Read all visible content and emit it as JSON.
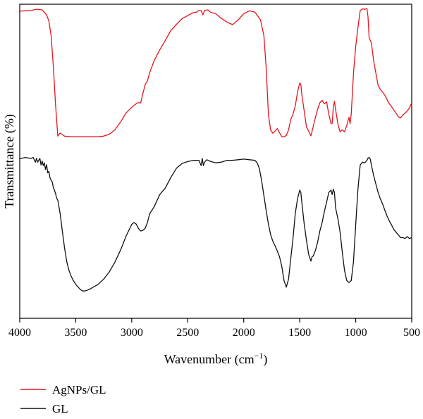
{
  "chart_data": {
    "type": "line",
    "xlabel": "Wavenumber (cm",
    "xlabel_sup": "−1",
    "xlabel_close": ")",
    "ylabel": "Transmittance (%)",
    "xlim": [
      4000,
      500
    ],
    "x_reversed": true,
    "ylim": [
      0,
      100
    ],
    "y_ticks_shown": false,
    "grid": false,
    "legend_position": "bottom-left-outside",
    "x_ticks": [
      {
        "value": 4000,
        "label": "4000"
      },
      {
        "value": 3500,
        "label": "3500"
      },
      {
        "value": 3000,
        "label": "3000"
      },
      {
        "value": 2500,
        "label": "2500"
      },
      {
        "value": 2000,
        "label": "2000"
      },
      {
        "value": 1500,
        "label": "1500"
      },
      {
        "value": 1000,
        "label": "1000"
      },
      {
        "value": 500,
        "label": "500"
      }
    ],
    "series": [
      {
        "name": "AgNPs/GL",
        "color": "#e8141c",
        "points": [
          [
            4000,
            97.8
          ],
          [
            3900,
            98.0
          ],
          [
            3850,
            98.4
          ],
          [
            3800,
            98.2
          ],
          [
            3780,
            97.4
          ],
          [
            3760,
            96.6
          ],
          [
            3740,
            94.7
          ],
          [
            3720,
            90.0
          ],
          [
            3700,
            80.0
          ],
          [
            3680,
            68.0
          ],
          [
            3660,
            58.0
          ],
          [
            3640,
            59.0
          ],
          [
            3620,
            58.5
          ],
          [
            3600,
            58.0
          ],
          [
            3550,
            57.8
          ],
          [
            3500,
            57.8
          ],
          [
            3450,
            57.8
          ],
          [
            3400,
            57.8
          ],
          [
            3350,
            57.8
          ],
          [
            3300,
            57.8
          ],
          [
            3250,
            58.0
          ],
          [
            3200,
            58.6
          ],
          [
            3150,
            60.0
          ],
          [
            3100,
            62.5
          ],
          [
            3050,
            65.4
          ],
          [
            3000,
            67.2
          ],
          [
            2950,
            68.6
          ],
          [
            2920,
            68.6
          ],
          [
            2900,
            71.6
          ],
          [
            2880,
            74.4
          ],
          [
            2860,
            75.6
          ],
          [
            2840,
            78.2
          ],
          [
            2800,
            82.0
          ],
          [
            2750,
            85.5
          ],
          [
            2700,
            88.5
          ],
          [
            2650,
            91.7
          ],
          [
            2600,
            93.6
          ],
          [
            2550,
            95.4
          ],
          [
            2500,
            96.4
          ],
          [
            2450,
            97.3
          ],
          [
            2420,
            97.5
          ],
          [
            2400,
            98.0
          ],
          [
            2380,
            98.0
          ],
          [
            2365,
            96.6
          ],
          [
            2350,
            98.0
          ],
          [
            2320,
            98.2
          ],
          [
            2300,
            97.5
          ],
          [
            2250,
            97.0
          ],
          [
            2200,
            95.5
          ],
          [
            2150,
            94.3
          ],
          [
            2100,
            93.5
          ],
          [
            2050,
            95.0
          ],
          [
            2000,
            97.0
          ],
          [
            1950,
            97.9
          ],
          [
            1900,
            97.5
          ],
          [
            1850,
            95.0
          ],
          [
            1820,
            90.0
          ],
          [
            1800,
            80.0
          ],
          [
            1780,
            65.0
          ],
          [
            1760,
            60.0
          ],
          [
            1740,
            58.9
          ],
          [
            1720,
            59.6
          ],
          [
            1700,
            60.4
          ],
          [
            1680,
            59.1
          ],
          [
            1660,
            57.8
          ],
          [
            1640,
            57.8
          ],
          [
            1620,
            58.2
          ],
          [
            1600,
            60.0
          ],
          [
            1580,
            63.3
          ],
          [
            1560,
            65.0
          ],
          [
            1540,
            67.5
          ],
          [
            1520,
            72.0
          ],
          [
            1500,
            74.9
          ],
          [
            1490,
            74.5
          ],
          [
            1480,
            70.9
          ],
          [
            1460,
            66.0
          ],
          [
            1440,
            60.9
          ],
          [
            1420,
            59.6
          ],
          [
            1400,
            58.1
          ],
          [
            1380,
            60.9
          ],
          [
            1360,
            64.0
          ],
          [
            1340,
            66.6
          ],
          [
            1320,
            68.6
          ],
          [
            1300,
            69.4
          ],
          [
            1280,
            68.3
          ],
          [
            1260,
            68.9
          ],
          [
            1240,
            64.9
          ],
          [
            1220,
            62.0
          ],
          [
            1210,
            62.1
          ],
          [
            1200,
            67.2
          ],
          [
            1190,
            69.1
          ],
          [
            1180,
            66.5
          ],
          [
            1160,
            62.0
          ],
          [
            1140,
            59.4
          ],
          [
            1120,
            60.0
          ],
          [
            1100,
            59.4
          ],
          [
            1080,
            61.4
          ],
          [
            1060,
            64.0
          ],
          [
            1050,
            62.0
          ],
          [
            1040,
            65.0
          ],
          [
            1020,
            78.0
          ],
          [
            1000,
            86.7
          ],
          [
            980,
            92.5
          ],
          [
            960,
            98.0
          ],
          [
            940,
            98.5
          ],
          [
            920,
            98.4
          ],
          [
            900,
            98.6
          ],
          [
            890,
            96.0
          ],
          [
            880,
            89.3
          ],
          [
            860,
            87.7
          ],
          [
            840,
            82.0
          ],
          [
            820,
            78.0
          ],
          [
            800,
            74.2
          ],
          [
            780,
            72.8
          ],
          [
            760,
            72.0
          ],
          [
            740,
            71.0
          ],
          [
            720,
            69.6
          ],
          [
            700,
            68.3
          ],
          [
            680,
            67.4
          ],
          [
            660,
            66.3
          ],
          [
            640,
            65.3
          ],
          [
            620,
            64.2
          ],
          [
            600,
            63.8
          ],
          [
            580,
            64.7
          ],
          [
            560,
            65.3
          ],
          [
            540,
            66.0
          ],
          [
            520,
            67.0
          ],
          [
            500,
            68.6
          ]
        ]
      },
      {
        "name": "GL",
        "color": "#111111",
        "points": [
          [
            4000,
            50.8
          ],
          [
            3950,
            51.2
          ],
          [
            3900,
            50.9
          ],
          [
            3880,
            51.2
          ],
          [
            3860,
            49.7
          ],
          [
            3850,
            50.9
          ],
          [
            3840,
            49.7
          ],
          [
            3820,
            50.9
          ],
          [
            3810,
            48.8
          ],
          [
            3800,
            50.1
          ],
          [
            3790,
            48.6
          ],
          [
            3780,
            49.5
          ],
          [
            3770,
            47.4
          ],
          [
            3760,
            48.9
          ],
          [
            3750,
            46.3
          ],
          [
            3740,
            46.8
          ],
          [
            3730,
            44.7
          ],
          [
            3720,
            44.0
          ],
          [
            3710,
            43.4
          ],
          [
            3700,
            41.5
          ],
          [
            3690,
            40.8
          ],
          [
            3680,
            39.7
          ],
          [
            3670,
            38.2
          ],
          [
            3660,
            37.6
          ],
          [
            3640,
            33.5
          ],
          [
            3620,
            27.8
          ],
          [
            3600,
            22.5
          ],
          [
            3580,
            18.0
          ],
          [
            3560,
            15.2
          ],
          [
            3540,
            13.3
          ],
          [
            3520,
            11.9
          ],
          [
            3500,
            10.8
          ],
          [
            3480,
            10.0
          ],
          [
            3460,
            9.2
          ],
          [
            3440,
            8.7
          ],
          [
            3420,
            8.7
          ],
          [
            3400,
            8.9
          ],
          [
            3380,
            9.2
          ],
          [
            3350,
            9.8
          ],
          [
            3300,
            10.8
          ],
          [
            3250,
            12.5
          ],
          [
            3200,
            14.8
          ],
          [
            3150,
            17.9
          ],
          [
            3100,
            21.7
          ],
          [
            3050,
            26.2
          ],
          [
            3000,
            29.9
          ],
          [
            2980,
            30.5
          ],
          [
            2960,
            30.0
          ],
          [
            2940,
            28.6
          ],
          [
            2920,
            27.8
          ],
          [
            2900,
            28.0
          ],
          [
            2880,
            28.6
          ],
          [
            2860,
            30.5
          ],
          [
            2840,
            33.3
          ],
          [
            2800,
            35.5
          ],
          [
            2750,
            39.4
          ],
          [
            2700,
            41.5
          ],
          [
            2650,
            44.9
          ],
          [
            2600,
            47.8
          ],
          [
            2550,
            49.3
          ],
          [
            2500,
            49.9
          ],
          [
            2450,
            50.3
          ],
          [
            2400,
            50.3
          ],
          [
            2380,
            48.6
          ],
          [
            2370,
            50.9
          ],
          [
            2360,
            48.6
          ],
          [
            2350,
            49.7
          ],
          [
            2330,
            50.5
          ],
          [
            2300,
            50.0
          ],
          [
            2250,
            49.5
          ],
          [
            2200,
            49.7
          ],
          [
            2150,
            50.3
          ],
          [
            2100,
            50.3
          ],
          [
            2050,
            50.5
          ],
          [
            2000,
            50.7
          ],
          [
            1950,
            50.5
          ],
          [
            1900,
            50.3
          ],
          [
            1880,
            49.5
          ],
          [
            1860,
            47.6
          ],
          [
            1840,
            43.8
          ],
          [
            1820,
            39.1
          ],
          [
            1800,
            34.4
          ],
          [
            1780,
            30.0
          ],
          [
            1760,
            26.7
          ],
          [
            1740,
            24.5
          ],
          [
            1720,
            23.1
          ],
          [
            1700,
            21.4
          ],
          [
            1680,
            19.6
          ],
          [
            1660,
            16.5
          ],
          [
            1640,
            12.0
          ],
          [
            1620,
            9.9
          ],
          [
            1600,
            12.5
          ],
          [
            1580,
            19.0
          ],
          [
            1560,
            25.4
          ],
          [
            1540,
            33.3
          ],
          [
            1520,
            38.0
          ],
          [
            1500,
            40.8
          ],
          [
            1490,
            40.1
          ],
          [
            1480,
            36.6
          ],
          [
            1460,
            30.0
          ],
          [
            1440,
            24.8
          ],
          [
            1420,
            20.3
          ],
          [
            1400,
            18.2
          ],
          [
            1390,
            19.6
          ],
          [
            1380,
            19.8
          ],
          [
            1360,
            21.6
          ],
          [
            1340,
            24.3
          ],
          [
            1320,
            27.8
          ],
          [
            1300,
            30.5
          ],
          [
            1280,
            34.0
          ],
          [
            1260,
            37.0
          ],
          [
            1240,
            40.1
          ],
          [
            1220,
            40.8
          ],
          [
            1210,
            39.4
          ],
          [
            1200,
            41.1
          ],
          [
            1190,
            40.1
          ],
          [
            1180,
            35.2
          ],
          [
            1160,
            31.8
          ],
          [
            1140,
            27.6
          ],
          [
            1120,
            21.1
          ],
          [
            1100,
            15.2
          ],
          [
            1080,
            12.0
          ],
          [
            1060,
            11.4
          ],
          [
            1040,
            12.0
          ],
          [
            1020,
            18.0
          ],
          [
            1000,
            30.0
          ],
          [
            980,
            41.0
          ],
          [
            960,
            48.8
          ],
          [
            940,
            49.7
          ],
          [
            920,
            49.5
          ],
          [
            900,
            50.3
          ],
          [
            890,
            51.0
          ],
          [
            880,
            51.2
          ],
          [
            870,
            50.7
          ],
          [
            860,
            48.8
          ],
          [
            840,
            45.5
          ],
          [
            820,
            42.7
          ],
          [
            800,
            40.1
          ],
          [
            780,
            38.0
          ],
          [
            760,
            36.4
          ],
          [
            740,
            34.4
          ],
          [
            720,
            32.5
          ],
          [
            700,
            31.0
          ],
          [
            680,
            29.7
          ],
          [
            660,
            28.3
          ],
          [
            640,
            27.4
          ],
          [
            620,
            26.6
          ],
          [
            600,
            25.7
          ],
          [
            580,
            25.7
          ],
          [
            560,
            25.4
          ],
          [
            540,
            26.0
          ],
          [
            520,
            25.4
          ],
          [
            500,
            25.7
          ]
        ]
      }
    ]
  }
}
